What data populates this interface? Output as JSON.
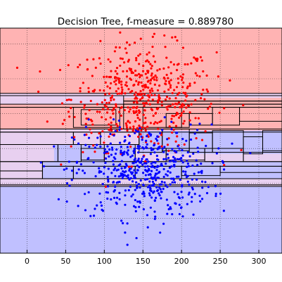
{
  "chart_data": {
    "type": "scatter",
    "title": "Decision Tree, f-measure = 0.889780",
    "xlabel": "",
    "ylabel": "",
    "xlim": [
      -35,
      330
    ],
    "ylim": [
      0,
      290
    ],
    "x_ticks": [
      0,
      50,
      100,
      150,
      200,
      250,
      300
    ],
    "y_ticks": [],
    "grid": true,
    "grid_style": "dotted",
    "colors": {
      "class_red": "#ff0000",
      "class_blue": "#0000ff",
      "region_red": "#ffb3b3",
      "region_blue": "#c0c0ff",
      "region_mixed": "#e8d0f0",
      "box_edge": "#000000"
    },
    "classes": [
      {
        "name": "",
        "color": "#ff0000",
        "center": [
          150,
          200
        ],
        "spread": [
          85,
          45
        ],
        "count": 520
      },
      {
        "name": "",
        "color": "#0000ff",
        "center": [
          150,
          105
        ],
        "spread": [
          80,
          40
        ],
        "count": 520
      }
    ],
    "regions": [
      {
        "x0": -35,
        "x1": 330,
        "y0": 206,
        "y1": 290,
        "cls": "red"
      },
      {
        "x0": -35,
        "x1": 330,
        "y0": 0,
        "y1": 86,
        "cls": "blue"
      },
      {
        "x0": -35,
        "x1": 330,
        "y0": 86,
        "y1": 206,
        "cls": "mixed"
      },
      {
        "x0": -35,
        "x1": 125,
        "y0": 160,
        "y1": 192,
        "cls": "red"
      },
      {
        "x0": 125,
        "x1": 330,
        "y0": 158,
        "y1": 200,
        "cls": "red"
      },
      {
        "x0": 20,
        "x1": 330,
        "y0": 96,
        "y1": 118,
        "cls": "blue"
      },
      {
        "x0": 145,
        "x1": 330,
        "y0": 128,
        "y1": 158,
        "cls": "blue"
      },
      {
        "x0": 35,
        "x1": 140,
        "y0": 118,
        "y1": 140,
        "cls": "blue"
      }
    ],
    "boxes": [
      [
        -35,
        330,
        203,
        206
      ],
      [
        125,
        330,
        196,
        203
      ],
      [
        125,
        330,
        192,
        196
      ],
      [
        125,
        330,
        188,
        192
      ],
      [
        -35,
        125,
        188,
        192
      ],
      [
        -35,
        125,
        160,
        188
      ],
      [
        60,
        120,
        162,
        188
      ],
      [
        70,
        115,
        165,
        185
      ],
      [
        150,
        200,
        162,
        188
      ],
      [
        180,
        210,
        162,
        180
      ],
      [
        210,
        240,
        165,
        180
      ],
      [
        240,
        275,
        165,
        188
      ],
      [
        275,
        330,
        170,
        188
      ],
      [
        -35,
        330,
        156,
        160
      ],
      [
        -35,
        60,
        140,
        156
      ],
      [
        60,
        95,
        140,
        156
      ],
      [
        95,
        145,
        140,
        156
      ],
      [
        145,
        175,
        130,
        160
      ],
      [
        175,
        210,
        132,
        160
      ],
      [
        210,
        240,
        130,
        155
      ],
      [
        240,
        280,
        130,
        158
      ],
      [
        280,
        305,
        128,
        150
      ],
      [
        305,
        330,
        132,
        158
      ],
      [
        -35,
        40,
        118,
        140
      ],
      [
        40,
        70,
        118,
        140
      ],
      [
        70,
        100,
        120,
        135
      ],
      [
        100,
        140,
        118,
        140
      ],
      [
        140,
        180,
        118,
        135
      ],
      [
        180,
        230,
        120,
        135
      ],
      [
        230,
        280,
        118,
        135
      ],
      [
        280,
        330,
        118,
        130
      ],
      [
        -35,
        20,
        106,
        118
      ],
      [
        20,
        330,
        112,
        118
      ],
      [
        20,
        60,
        96,
        112
      ],
      [
        60,
        140,
        96,
        112
      ],
      [
        140,
        200,
        96,
        112
      ],
      [
        200,
        250,
        100,
        112
      ],
      [
        250,
        330,
        104,
        112
      ],
      [
        -35,
        20,
        96,
        106
      ],
      [
        -35,
        330,
        88,
        96
      ],
      [
        -35,
        330,
        86,
        88
      ]
    ]
  }
}
